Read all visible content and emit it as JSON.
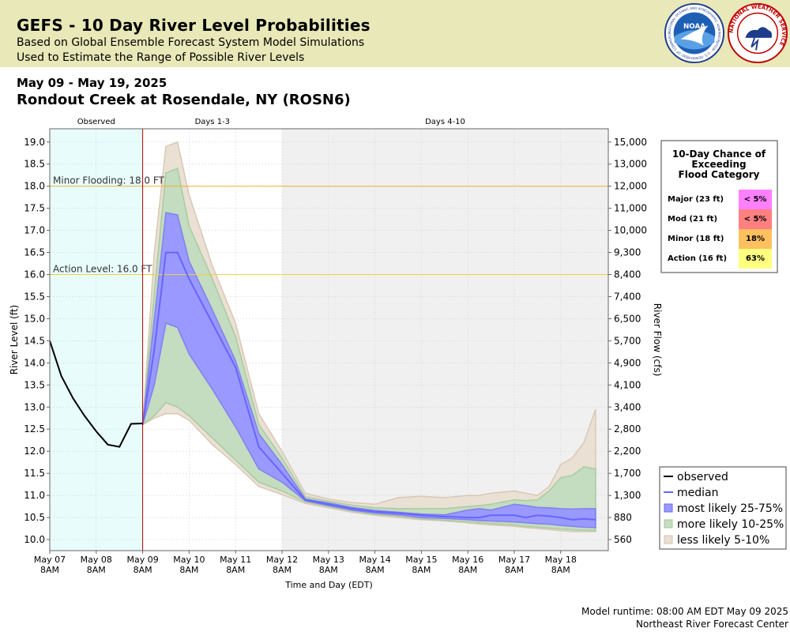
{
  "header": {
    "title": "GEFS - 10 Day River Level Probabilities",
    "subtitle1": "Based on Global Ensemble Forecast System Model Simulations",
    "subtitle2": "Used to Estimate the Range of Possible River Levels",
    "logo_noaa": "NOAA",
    "logo_noaa_ring": "NATIONAL OCEANIC AND ATMOSPHERIC ADMINISTRATION · U.S. DEPARTMENT OF COMMERCE ·",
    "logo_nws_ring": "NATIONAL WEATHER SERVICE"
  },
  "dates": "May 09 - May 19, 2025",
  "station": "Rondout Creek at Rosendale, NY (ROSN6)",
  "footer": {
    "runtime": "Model runtime: 08:00 AM EDT May 09 2025",
    "center": "Northeast River Forecast Center"
  },
  "colors": {
    "observed_bg": "#e8fcfc",
    "forecast_bg": "#f0f0f0",
    "median": "#6666ff",
    "band_25_75": "#9999ff",
    "band_10_25": "#c4dcc0",
    "band_5_10": "#eae0d4",
    "flood_line": "#f0b030",
    "action_line": "#f0d040",
    "now_line": "#b00000"
  },
  "chart_data": {
    "type": "area",
    "period_labels": [
      "Observed",
      "Days 1-3",
      "Days 4-10"
    ],
    "xlabel": "Time and Day (EDT)",
    "ylabel": "River Level (ft)",
    "ylabel_right": "River Flow (cfs)",
    "ylim": [
      9.75,
      19.3
    ],
    "y_ticks": [
      "10.0",
      "10.5",
      "11.0",
      "11.5",
      "12.0",
      "12.5",
      "13.0",
      "13.5",
      "14.0",
      "14.5",
      "15.0",
      "15.5",
      "16.0",
      "16.5",
      "17.0",
      "17.5",
      "18.0",
      "18.5",
      "19.0"
    ],
    "y_ticks_right": [
      {
        "level": 10.0,
        "label": "560"
      },
      {
        "level": 10.5,
        "label": "880"
      },
      {
        "level": 11.0,
        "label": "1,300"
      },
      {
        "level": 11.5,
        "label": "1,700"
      },
      {
        "level": 12.0,
        "label": "2,200"
      },
      {
        "level": 12.5,
        "label": "2,800"
      },
      {
        "level": 13.0,
        "label": "3,400"
      },
      {
        "level": 13.5,
        "label": "4,100"
      },
      {
        "level": 14.0,
        "label": "4,900"
      },
      {
        "level": 14.5,
        "label": "5,700"
      },
      {
        "level": 15.0,
        "label": "6,500"
      },
      {
        "level": 15.5,
        "label": "7,400"
      },
      {
        "level": 16.0,
        "label": "8,400"
      },
      {
        "level": 16.5,
        "label": "9,300"
      },
      {
        "level": 17.0,
        "label": "10,000"
      },
      {
        "level": 17.5,
        "label": "11,000"
      },
      {
        "level": 18.0,
        "label": "12,000"
      },
      {
        "level": 18.5,
        "label": "13,000"
      },
      {
        "level": 19.0,
        "label": "15,000"
      }
    ],
    "x_ticks": [
      {
        "day": 0,
        "label": "May 07",
        "time": "8AM"
      },
      {
        "day": 1,
        "label": "May 08",
        "time": "8AM"
      },
      {
        "day": 2,
        "label": "May 09",
        "time": "8AM"
      },
      {
        "day": 3,
        "label": "May 10",
        "time": "8AM"
      },
      {
        "day": 4,
        "label": "May 11",
        "time": "8AM"
      },
      {
        "day": 5,
        "label": "May 12",
        "time": "8AM"
      },
      {
        "day": 6,
        "label": "May 13",
        "time": "8AM"
      },
      {
        "day": 7,
        "label": "May 14",
        "time": "8AM"
      },
      {
        "day": 8,
        "label": "May 15",
        "time": "8AM"
      },
      {
        "day": 9,
        "label": "May 16",
        "time": "8AM"
      },
      {
        "day": 10,
        "label": "May 17",
        "time": "8AM"
      },
      {
        "day": 11,
        "label": "May 18",
        "time": "8AM"
      }
    ],
    "thresholds": [
      {
        "name": "Minor Flooding: 18.0 FT",
        "value": 18.0
      },
      {
        "name": "Action Level: 16.0 FT",
        "value": 16.0
      }
    ],
    "observed": {
      "x": [
        0,
        0.25,
        0.5,
        0.75,
        1.0,
        1.25,
        1.5,
        1.75,
        2.0
      ],
      "y": [
        14.5,
        13.7,
        13.2,
        12.8,
        12.45,
        12.15,
        12.1,
        12.62,
        12.63
      ]
    },
    "forecast_x": [
      2.0,
      2.25,
      2.5,
      2.75,
      3.0,
      3.5,
      4.0,
      4.5,
      5.0,
      5.5,
      6.0,
      6.5,
      7.0,
      7.5,
      8.0,
      8.5,
      9.0,
      9.25,
      9.5,
      10.0,
      10.25,
      10.5,
      10.75,
      11.0,
      11.25,
      11.5,
      11.75
    ],
    "median": [
      12.6,
      14.3,
      16.5,
      16.5,
      15.9,
      14.9,
      13.9,
      12.1,
      11.5,
      10.9,
      10.8,
      10.7,
      10.63,
      10.6,
      10.55,
      10.52,
      10.5,
      10.5,
      10.55,
      10.55,
      10.5,
      10.55,
      10.53,
      10.5,
      10.45,
      10.47,
      10.45
    ],
    "band_25_75_low": [
      12.6,
      13.5,
      14.9,
      14.8,
      14.2,
      13.4,
      12.55,
      11.6,
      11.3,
      10.88,
      10.77,
      10.67,
      10.6,
      10.56,
      10.5,
      10.48,
      10.45,
      10.43,
      10.42,
      10.4,
      10.38,
      10.36,
      10.35,
      10.32,
      10.3,
      10.28,
      10.27
    ],
    "band_25_75_high": [
      12.6,
      15.0,
      17.4,
      17.35,
      16.3,
      15.2,
      14.05,
      12.4,
      11.7,
      10.92,
      10.83,
      10.73,
      10.66,
      10.62,
      10.58,
      10.56,
      10.67,
      10.7,
      10.67,
      10.8,
      10.77,
      10.73,
      10.72,
      10.7,
      10.69,
      10.7,
      10.7
    ],
    "band_10_25_low": [
      12.6,
      12.8,
      13.1,
      13.0,
      12.8,
      12.3,
      11.8,
      11.3,
      11.1,
      10.85,
      10.75,
      10.65,
      10.57,
      10.53,
      10.47,
      10.44,
      10.4,
      10.38,
      10.36,
      10.33,
      10.3,
      10.28,
      10.26,
      10.24,
      10.22,
      10.21,
      10.2
    ],
    "band_10_25_high": [
      12.6,
      15.6,
      18.3,
      18.4,
      17.1,
      15.9,
      14.6,
      12.6,
      11.85,
      10.97,
      10.87,
      10.78,
      10.72,
      10.7,
      10.7,
      10.7,
      10.75,
      10.77,
      10.8,
      10.9,
      10.88,
      10.9,
      11.1,
      11.4,
      11.45,
      11.65,
      11.6
    ],
    "band_5_10_low": [
      12.6,
      12.75,
      12.85,
      12.85,
      12.7,
      12.15,
      11.7,
      11.2,
      11.02,
      10.82,
      10.72,
      10.62,
      10.55,
      10.5,
      10.45,
      10.42,
      10.38,
      10.35,
      10.33,
      10.3,
      10.27,
      10.25,
      10.23,
      10.2,
      10.18,
      10.18,
      10.18
    ],
    "band_5_10_high": [
      12.6,
      16.5,
      18.9,
      19.0,
      17.8,
      16.2,
      14.9,
      12.85,
      12.0,
      11.05,
      10.92,
      10.84,
      10.8,
      10.95,
      10.98,
      10.95,
      11.0,
      11.0,
      11.05,
      11.1,
      11.05,
      11.0,
      11.2,
      11.7,
      11.85,
      12.2,
      12.95
    ],
    "legend": [
      {
        "label": "observed",
        "kind": "line",
        "color": "#000000"
      },
      {
        "label": "median",
        "kind": "line",
        "color": "#6666ff"
      },
      {
        "label": "most likely 25-75%",
        "kind": "box",
        "color": "#9999ff",
        "edge": "#6666ff"
      },
      {
        "label": "more likely 10-25%",
        "kind": "box",
        "color": "#c4dcc0",
        "edge": "#a0c898"
      },
      {
        "label": "less likely 5-10%",
        "kind": "box",
        "color": "#eae0d4",
        "edge": "#d4c0a8"
      }
    ],
    "legend_position": "bottom-right",
    "exceed_table": {
      "title_lines": [
        "10-Day Chance of",
        "Exceeding",
        "Flood Category"
      ],
      "rows": [
        {
          "category": "Major (23 ft)",
          "value": "< 5%",
          "color": "#ff80ff"
        },
        {
          "category": "Mod (21 ft)",
          "value": "< 5%",
          "color": "#ff8080"
        },
        {
          "category": "Minor (18 ft)",
          "value": "18%",
          "color": "#ffc060"
        },
        {
          "category": "Action (16 ft)",
          "value": "63%",
          "color": "#ffff80"
        }
      ]
    }
  }
}
